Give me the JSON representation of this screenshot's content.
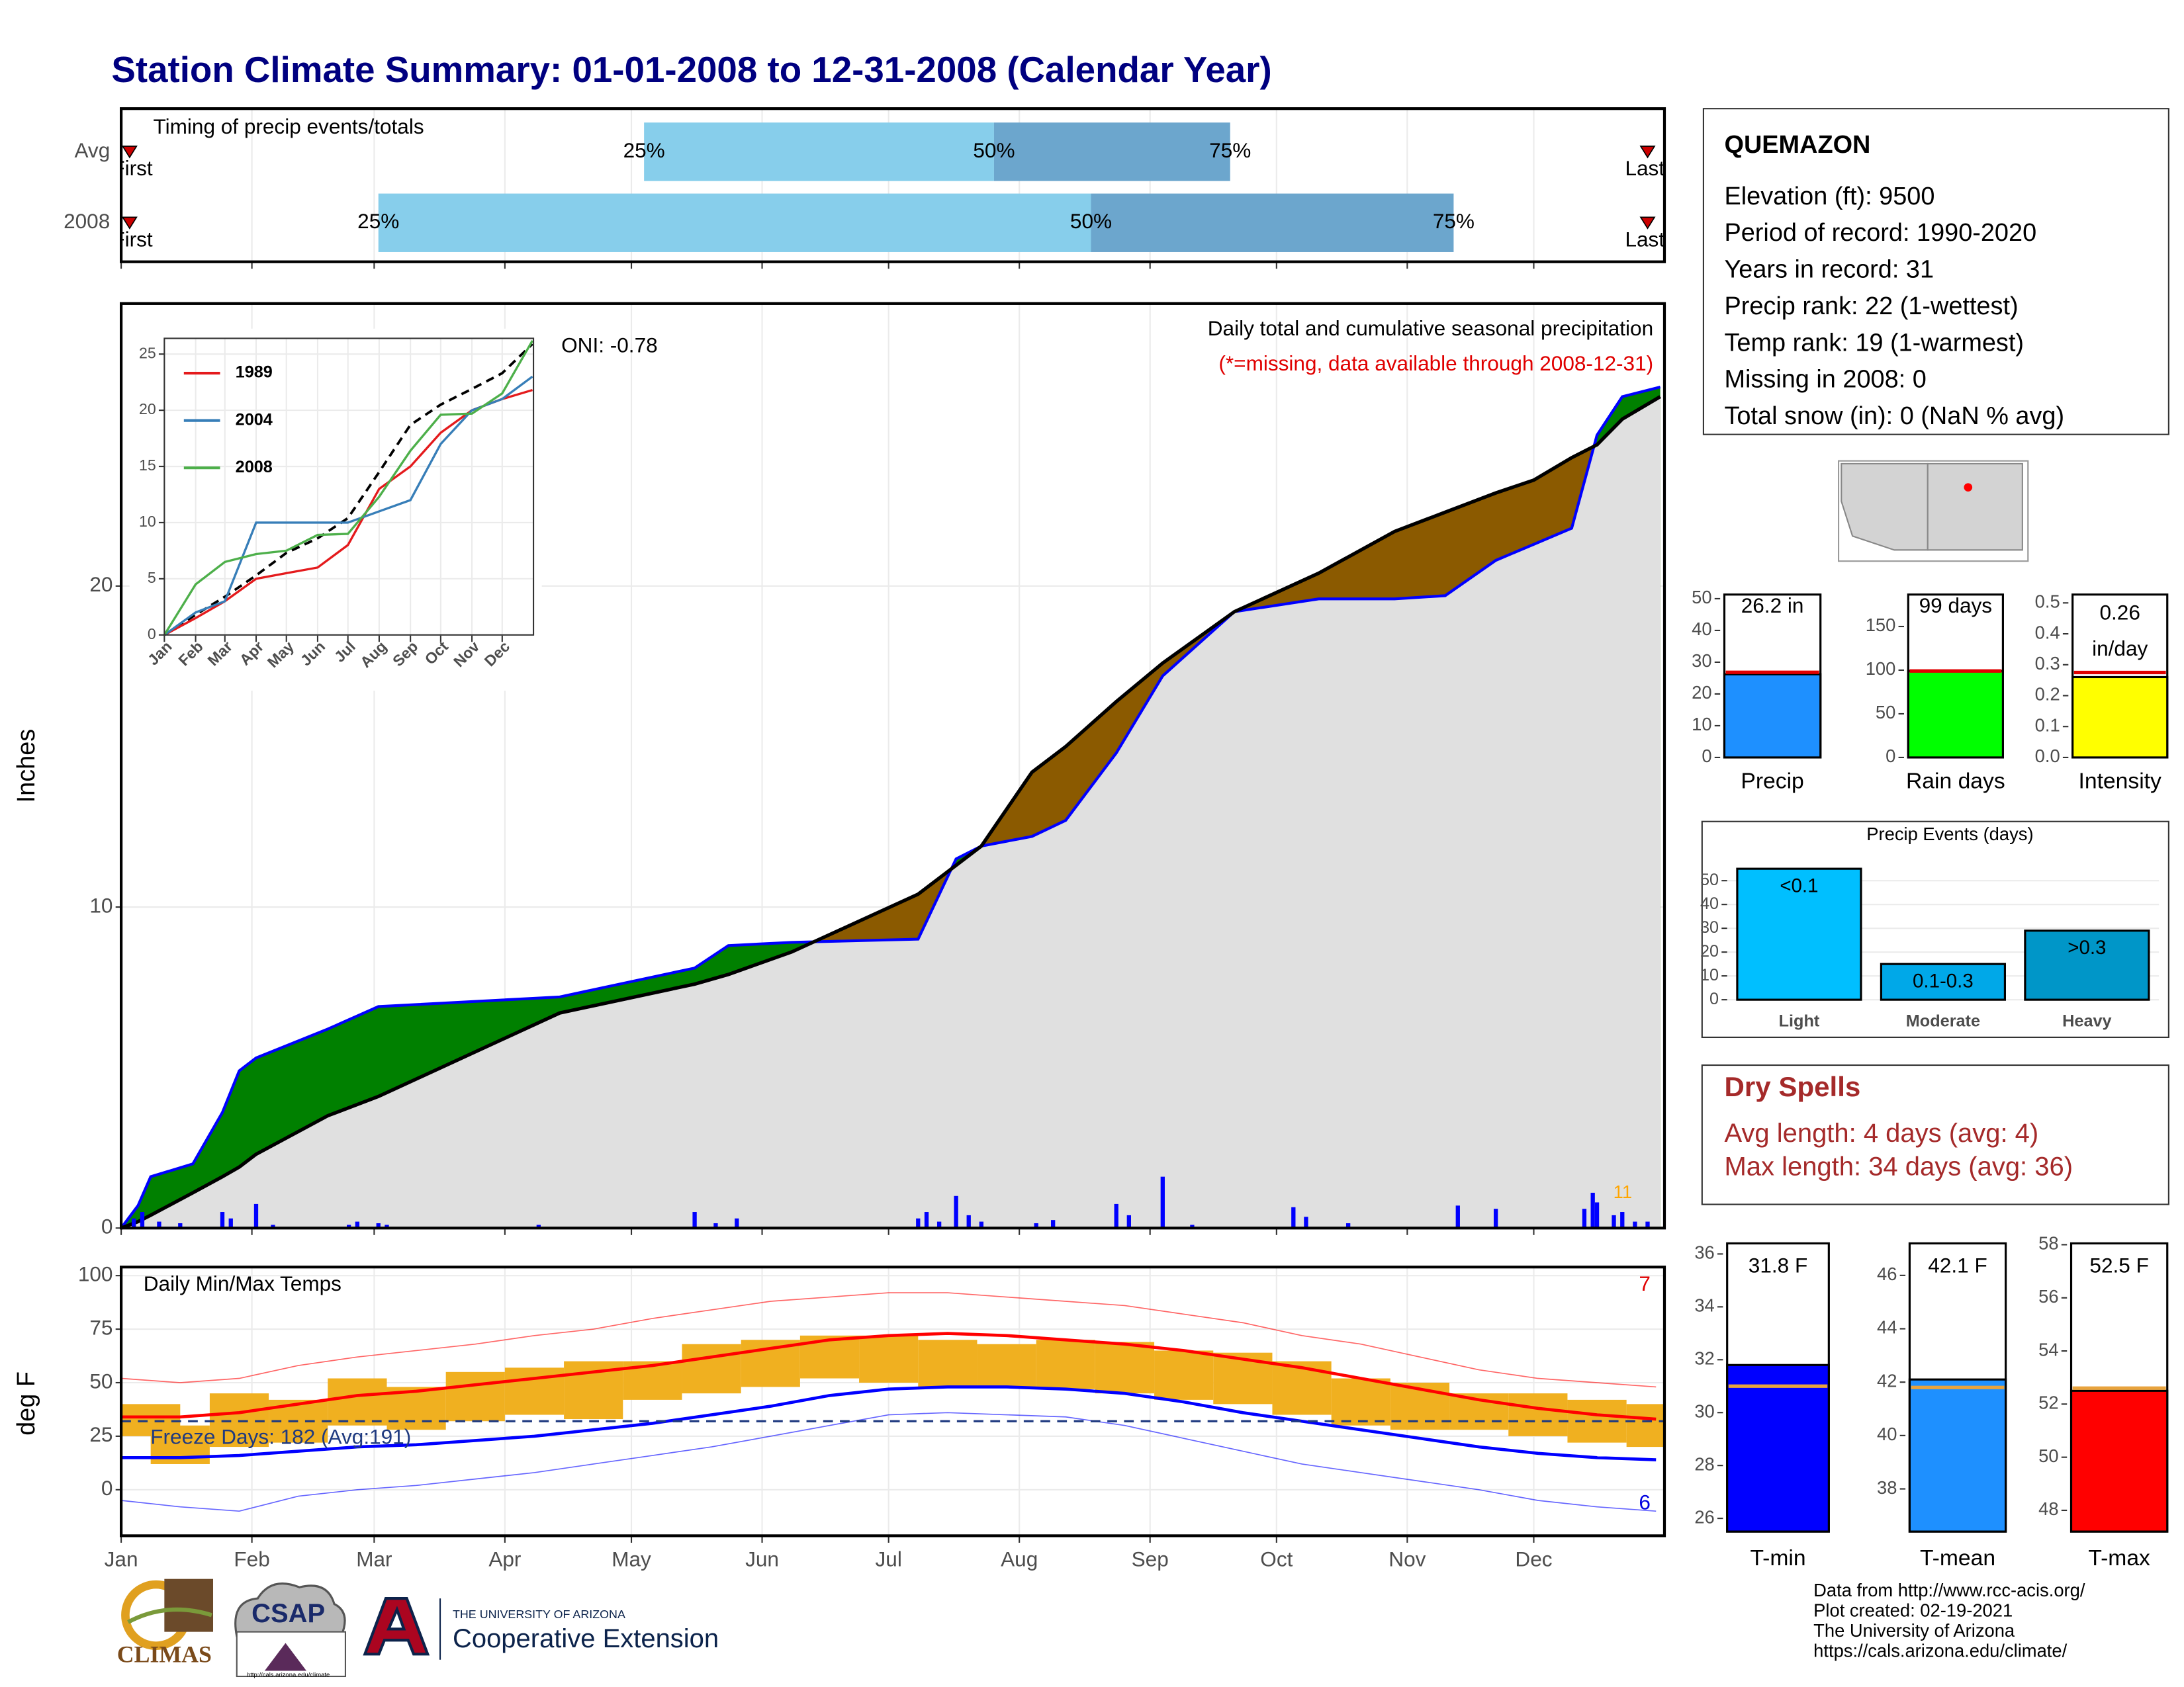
{
  "title": "Station Climate Summary: 01-01-2008 to 12-31-2008 (Calendar Year)",
  "chart_data": [
    {
      "type": "timing",
      "title": "Timing of precip events/totals",
      "categories": [
        "Avg",
        "2008"
      ],
      "first": [
        3,
        3
      ],
      "last": [
        363,
        363
      ],
      "first_label": "First",
      "last_label": "Last",
      "quantiles": [
        {
          "name": "25%",
          "values": [
            125,
            62
          ]
        },
        {
          "name": "50%",
          "values": [
            208,
            231
          ]
        },
        {
          "name": "75%",
          "values": [
            264,
            317
          ]
        }
      ],
      "colors": [
        "#87ceeb",
        "#6ca6cd"
      ],
      "marker_color": "#cc0000",
      "xlim": [
        1,
        367
      ],
      "xticks": [
        1,
        32,
        61,
        92,
        122,
        153,
        183,
        214,
        245,
        275,
        306,
        336
      ],
      "grid": true
    },
    {
      "type": "cumulative",
      "title": "Daily total and cumulative seasonal precipitation",
      "subtitle": "(*=missing, data available through 2008-12-31)",
      "annotation": "ONI: -0.78",
      "ylabel": "Inches",
      "marker_label": "11",
      "x": [
        1,
        5,
        8,
        18,
        25,
        29,
        33,
        50,
        62,
        105,
        137,
        145,
        160,
        190,
        199,
        205,
        217,
        225,
        237,
        248,
        265,
        285,
        303,
        315,
        327,
        336,
        345,
        351,
        357,
        366
      ],
      "cumulative": {
        "color": "#0000ff",
        "values": [
          0,
          0.7,
          1.6,
          2.0,
          3.6,
          4.9,
          5.3,
          6.2,
          6.9,
          7.2,
          8.1,
          8.8,
          8.9,
          9.0,
          11.5,
          11.9,
          12.2,
          12.7,
          14.8,
          17.2,
          19.2,
          19.6,
          19.6,
          19.7,
          20.8,
          21.3,
          21.8,
          24.7,
          25.9,
          26.2
        ]
      },
      "average": {
        "color": "#000000",
        "values": [
          0,
          0.2,
          0.4,
          1.1,
          1.6,
          1.9,
          2.3,
          3.5,
          4.1,
          6.7,
          7.6,
          7.9,
          8.6,
          10.4,
          11.3,
          11.9,
          14.2,
          15.0,
          16.4,
          17.6,
          19.2,
          20.4,
          21.7,
          22.3,
          22.9,
          23.3,
          24.0,
          24.4,
          25.2,
          25.9
        ]
      },
      "daily": {
        "color": "#0000ff",
        "x": [
          4,
          6,
          10,
          15,
          25,
          27,
          33,
          37,
          55,
          57,
          62,
          64,
          100,
          137,
          142,
          147,
          190,
          192,
          195,
          199,
          202,
          205,
          218,
          222,
          237,
          240,
          248,
          255,
          279,
          282,
          292,
          318,
          327,
          348,
          350,
          351,
          355,
          357,
          360,
          363
        ],
        "values": [
          0.3,
          0.5,
          0.2,
          0.15,
          0.5,
          0.3,
          0.75,
          0.1,
          0.1,
          0.2,
          0.15,
          0.1,
          0.1,
          0.5,
          0.15,
          0.3,
          0.3,
          0.5,
          0.2,
          1.0,
          0.4,
          0.2,
          0.15,
          0.25,
          0.75,
          0.4,
          1.6,
          0.1,
          0.65,
          0.35,
          0.15,
          0.7,
          0.6,
          0.6,
          1.1,
          0.8,
          0.4,
          0.5,
          0.2,
          0.2
        ]
      },
      "above_color": "#008000",
      "below_color": "#8b5a00",
      "fill": "#e0e0e0",
      "xlim": [
        1,
        367
      ],
      "ylim": [
        0,
        28.8
      ],
      "yticks": [
        0,
        10,
        20
      ],
      "xticks": [
        1,
        32,
        61,
        92,
        122,
        153,
        183,
        214,
        245,
        275,
        306,
        336
      ],
      "grid": true
    },
    {
      "type": "line",
      "x": [
        1,
        32,
        61,
        92,
        122,
        153,
        183,
        214,
        245,
        275,
        306,
        336,
        366
      ],
      "series": [
        {
          "name": "1989",
          "color": "#e41a1c",
          "values": [
            0,
            1.5,
            3.0,
            5.0,
            5.5,
            6.0,
            8.0,
            13.0,
            15.0,
            18.0,
            20.0,
            21.0,
            21.8
          ]
        },
        {
          "name": "2004",
          "color": "#377eb8",
          "values": [
            0,
            2.0,
            3.0,
            10.0,
            10.0,
            10.0,
            10.0,
            11.0,
            12.0,
            17.0,
            20.0,
            21.0,
            23.0
          ]
        },
        {
          "name": "2008",
          "color": "#4daf4a",
          "values": [
            0,
            4.5,
            6.5,
            7.2,
            7.5,
            8.9,
            9.0,
            12.3,
            16.4,
            19.6,
            19.7,
            21.5,
            26.2
          ]
        }
      ],
      "average": {
        "color": "#000000",
        "values": [
          0,
          1.8,
          3.4,
          5.3,
          7.3,
          8.6,
          10.4,
          14.5,
          18.7,
          20.5,
          21.9,
          23.3,
          25.9
        ]
      },
      "xlim": [
        1,
        367
      ],
      "ylim": [
        0,
        26.4
      ],
      "yticks": [
        0,
        5,
        10,
        15,
        20,
        25
      ],
      "xticks": [
        {
          "value": 1,
          "label": "Jan"
        },
        {
          "value": 32,
          "label": "Feb"
        },
        {
          "value": 61,
          "label": "Mar"
        },
        {
          "value": 92,
          "label": "Apr"
        },
        {
          "value": 122,
          "label": "May"
        },
        {
          "value": 153,
          "label": "Jun"
        },
        {
          "value": 183,
          "label": "Jul"
        },
        {
          "value": 214,
          "label": "Aug"
        },
        {
          "value": 245,
          "label": "Sep"
        },
        {
          "value": 275,
          "label": "Oct"
        },
        {
          "value": 306,
          "label": "Nov"
        },
        {
          "value": 336,
          "label": "Dec"
        }
      ],
      "grid": true
    },
    {
      "type": "temps",
      "title": "Daily Min/Max Temps",
      "annotation": "Freeze Days: 182 (Avg:191)",
      "ylabel": "deg F",
      "max_label": "7",
      "min_label": "6",
      "freeze": 32,
      "x": [
        1,
        15,
        29,
        43,
        57,
        71,
        85,
        99,
        113,
        127,
        141,
        155,
        169,
        183,
        197,
        211,
        225,
        239,
        253,
        267,
        281,
        295,
        309,
        323,
        337,
        351,
        365
      ],
      "obs_max": [
        40,
        30,
        45,
        42,
        52,
        48,
        55,
        57,
        60,
        60,
        68,
        70,
        72,
        72,
        70,
        68,
        70,
        69,
        65,
        64,
        60,
        52,
        50,
        45,
        45,
        42,
        40
      ],
      "obs_min": [
        25,
        12,
        20,
        22,
        30,
        28,
        32,
        35,
        33,
        42,
        45,
        48,
        52,
        50,
        48,
        48,
        47,
        45,
        42,
        40,
        35,
        30,
        28,
        28,
        25,
        22,
        20
      ],
      "avg_max": [
        34,
        34,
        36,
        40,
        44,
        46,
        49,
        52,
        55,
        58,
        62,
        66,
        70,
        72,
        73,
        72,
        70,
        68,
        65,
        61,
        57,
        52,
        47,
        42,
        38,
        35,
        33
      ],
      "avg_min": [
        15,
        15,
        16,
        18,
        20,
        21,
        23,
        25,
        28,
        31,
        35,
        39,
        44,
        47,
        48,
        48,
        47,
        45,
        41,
        36,
        32,
        28,
        24,
        20,
        17,
        15,
        14
      ],
      "rec_max": [
        52,
        50,
        52,
        58,
        62,
        65,
        68,
        72,
        75,
        80,
        84,
        88,
        90,
        92,
        92,
        90,
        88,
        86,
        82,
        78,
        72,
        68,
        62,
        56,
        52,
        50,
        48
      ],
      "rec_min": [
        -5,
        -8,
        -10,
        -3,
        0,
        2,
        5,
        8,
        12,
        16,
        20,
        25,
        30,
        35,
        36,
        35,
        34,
        30,
        24,
        18,
        12,
        8,
        4,
        0,
        -5,
        -8,
        -10
      ],
      "bar_color": "#f0b020",
      "max_color": "#ff0000",
      "min_color": "#0000ff",
      "xlim": [
        1,
        367
      ],
      "ylim": [
        -21.5,
        104
      ],
      "yticks": [
        0,
        25,
        50,
        75,
        100
      ],
      "xticks": [
        {
          "value": 1,
          "label": "Jan"
        },
        {
          "value": 32,
          "label": "Feb"
        },
        {
          "value": 61,
          "label": "Mar"
        },
        {
          "value": 92,
          "label": "Apr"
        },
        {
          "value": 122,
          "label": "May"
        },
        {
          "value": 153,
          "label": "Jun"
        },
        {
          "value": 183,
          "label": "Jul"
        },
        {
          "value": 214,
          "label": "Aug"
        },
        {
          "value": 245,
          "label": "Sep"
        },
        {
          "value": 275,
          "label": "Oct"
        },
        {
          "value": 306,
          "label": "Nov"
        },
        {
          "value": 336,
          "label": "Dec"
        }
      ],
      "grid": true
    },
    {
      "type": "summary",
      "categories": [
        "Precip"
      ],
      "values": [
        26.2
      ],
      "value_labels": [
        "26.2 in"
      ],
      "average": 26.8,
      "color": "#1e90ff",
      "average_color": "#e00000",
      "ylim": [
        0,
        51.3
      ],
      "yticks": [
        0,
        10,
        20,
        30,
        40,
        50
      ]
    },
    {
      "type": "summary",
      "categories": [
        "Rain days"
      ],
      "values": [
        99
      ],
      "value_labels": [
        "99 days"
      ],
      "average": 99,
      "color": "#00ff00",
      "average_color": "#e00000",
      "ylim": [
        0,
        186.6
      ],
      "yticks": [
        0,
        50,
        100,
        150
      ]
    },
    {
      "type": "summary",
      "categories": [
        "Intensity"
      ],
      "values": [
        0.26
      ],
      "value_labels": [
        "0.26"
      ],
      "unit": "in/day",
      "average": 0.275,
      "color": "#ffff00",
      "average_color": "#e00000",
      "ylim": [
        0,
        0.527
      ],
      "yticks": [
        {
          "value": 0,
          "label": "0.0"
        },
        0.1,
        0.2,
        0.3,
        0.4,
        0.5
      ]
    },
    {
      "type": "bar",
      "title": "Precip Events (days)",
      "categories": [
        "Light",
        "Moderate",
        "Heavy"
      ],
      "values": [
        55,
        15,
        29
      ],
      "bin_labels": [
        "<0.1",
        "0.1-0.3",
        ">0.3"
      ],
      "colors": [
        "#00bfff",
        "#00a8e8",
        "#0096c8"
      ],
      "ylim": [
        0,
        57.3
      ],
      "yticks": [
        0,
        10,
        20,
        30,
        40,
        50
      ],
      "grid": true
    },
    {
      "type": "summary",
      "categories": [
        "T-min"
      ],
      "values": [
        31.8
      ],
      "value_labels": [
        "31.8 F"
      ],
      "average": 31.0,
      "color": "#0000ff",
      "average_color": "#e8a33d",
      "ylim": [
        25.5,
        36.4
      ],
      "yticks": [
        26,
        28,
        30,
        32,
        34,
        36
      ]
    },
    {
      "type": "summary",
      "categories": [
        "T-mean"
      ],
      "values": [
        42.1
      ],
      "value_labels": [
        "42.1 F"
      ],
      "average": 41.8,
      "color": "#1e90ff",
      "average_color": "#e8a33d",
      "ylim": [
        36.4,
        47.2
      ],
      "yticks": [
        38,
        40,
        42,
        44,
        46
      ]
    },
    {
      "type": "summary",
      "categories": [
        "T-max"
      ],
      "values": [
        52.5
      ],
      "value_labels": [
        "52.5 F"
      ],
      "average": 52.6,
      "color": "#ff0000",
      "average_color": "#e8a33d",
      "ylim": [
        47.2,
        58.05
      ],
      "yticks": [
        48,
        50,
        52,
        54,
        56,
        58
      ]
    }
  ],
  "station": {
    "name": "QUEMAZON",
    "lines": [
      "Elevation (ft): 9500",
      "Period of record: 1990-2020",
      "Years in record: 31",
      "Precip rank: 22 (1-wettest)",
      "Temp rank: 19 (1-warmest)",
      "Missing in 2008: 0",
      "Total snow (in): 0 (NaN % avg)"
    ]
  },
  "dry_spells": {
    "title": "Dry Spells",
    "lines": [
      "Avg length: 4 days (avg: 4)",
      "Max length: 34 days (avg: 36)"
    ]
  },
  "footer": {
    "lines": [
      "Data from http://www.rcc-acis.org/",
      "Plot created: 02-19-2021",
      "The University of Arizona",
      "https://cals.arizona.edu/climate/"
    ]
  },
  "logos": {
    "climas": "CLIMAS",
    "csap": "CSAP",
    "csap_url": "http://cals.arizona.edu/climate",
    "ua": "THE UNIVERSITY OF ARIZONA",
    "extension": "Cooperative Extension"
  }
}
